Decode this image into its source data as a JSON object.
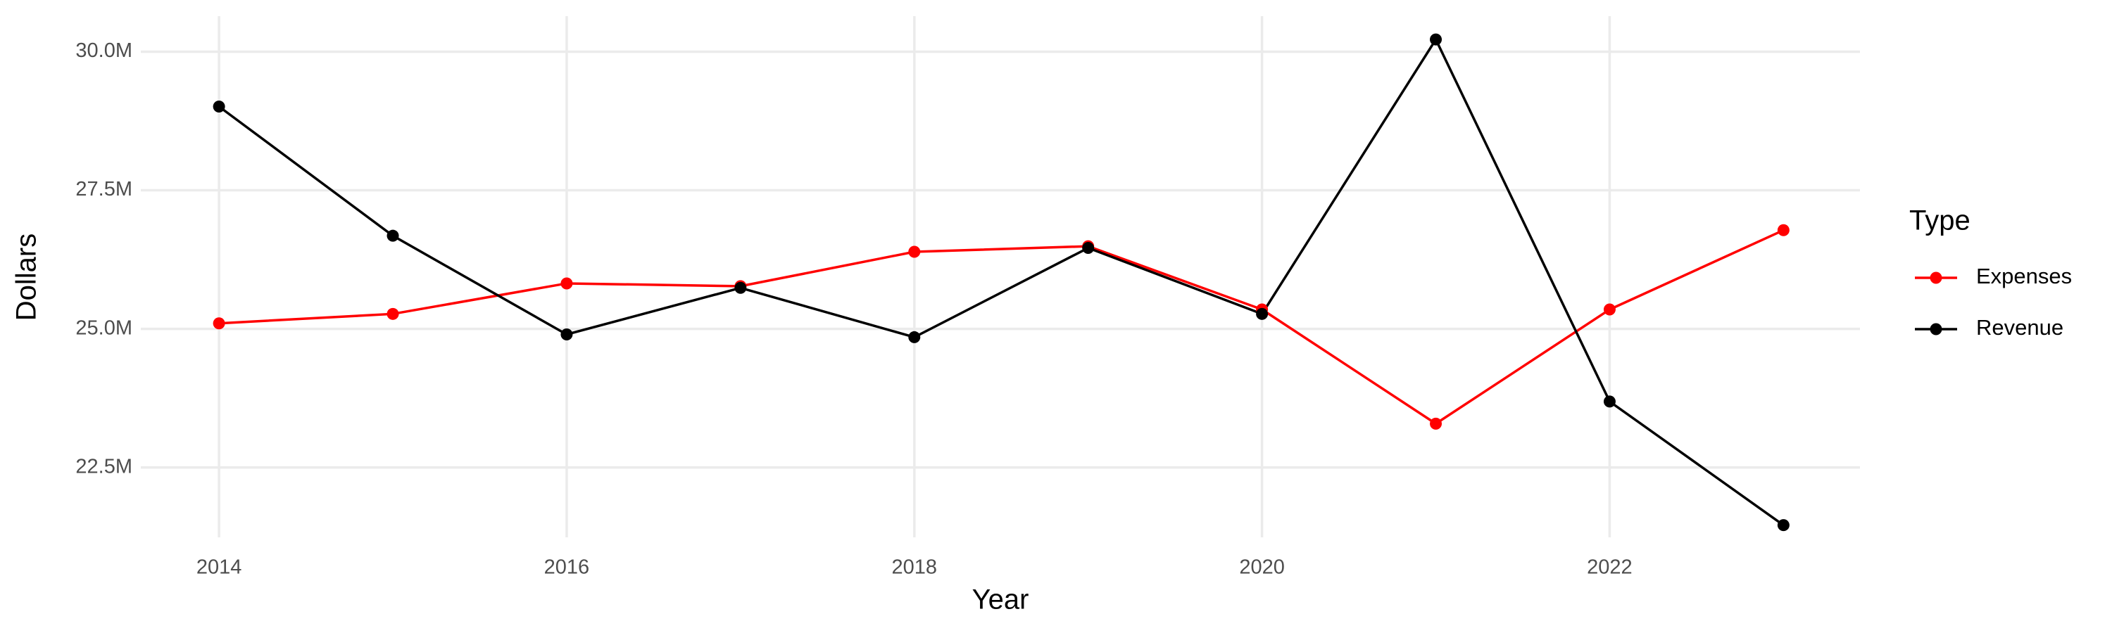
{
  "chart_data": {
    "type": "line",
    "x_label": "Year",
    "y_label": "Dollars",
    "legend_title": "Type",
    "x": [
      2014,
      2015,
      2016,
      2017,
      2018,
      2019,
      2020,
      2021,
      2022,
      2023
    ],
    "series": [
      {
        "name": "Expenses",
        "color": "#ff0000",
        "values": [
          25100000,
          25270000,
          25820000,
          25770000,
          26390000,
          26490000,
          25350000,
          23290000,
          25350000,
          26780000
        ]
      },
      {
        "name": "Revenue",
        "color": "#000000",
        "values": [
          29010000,
          26680000,
          24900000,
          25740000,
          24850000,
          26460000,
          25270000,
          30220000,
          23690000,
          21460000
        ]
      }
    ],
    "xlim": [
      2013.55,
      2023.44
    ],
    "xticks": [
      2014,
      2016,
      2018,
      2020,
      2022
    ],
    "ylim": [
      21240000,
      30640000
    ],
    "yticks": [
      {
        "value": 22500000,
        "label": "22.5M"
      },
      {
        "value": 25000000,
        "label": "25.0M"
      },
      {
        "value": 27500000,
        "label": "27.5M"
      },
      {
        "value": 30000000,
        "label": "30.0M"
      }
    ],
    "grid": true,
    "legend_position": "right"
  }
}
